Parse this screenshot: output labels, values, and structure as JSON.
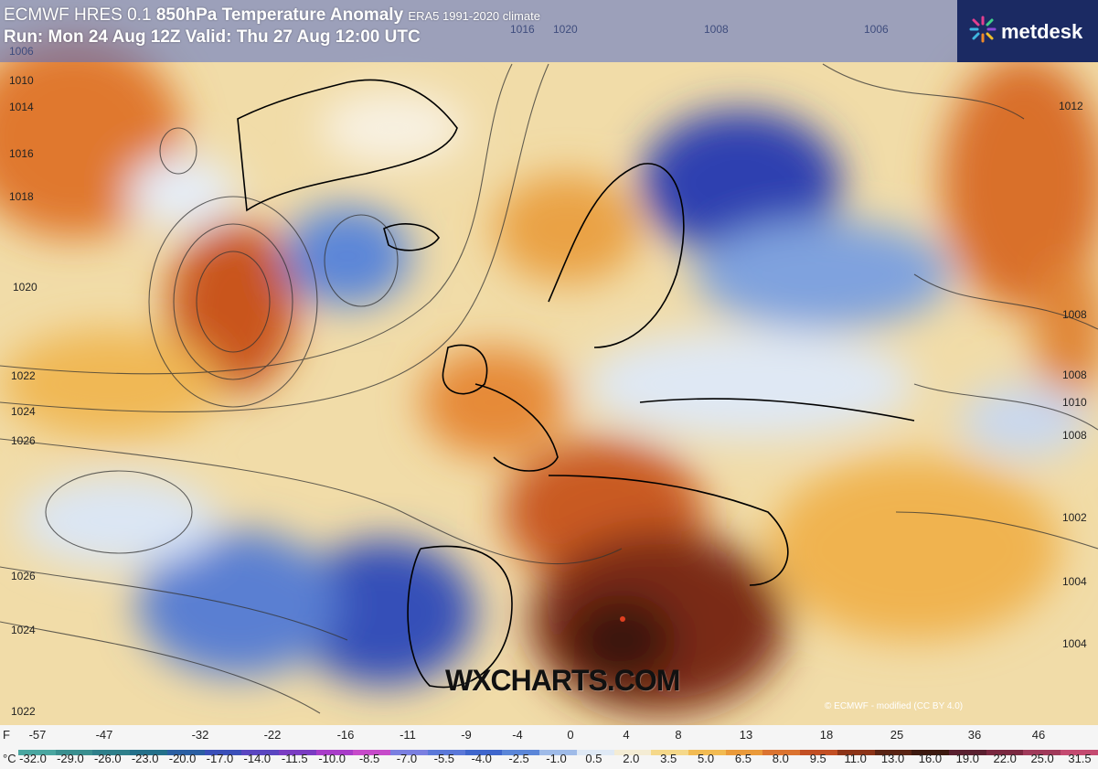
{
  "header": {
    "title_line1": "ECMWF HRES 0.1",
    "title_var": "850hPa Temperature Anomaly",
    "title_climate": "ERA5 1991-2020 climate",
    "title_line2": "Run: Mon 24 Aug 12Z Valid: Thu 27 Aug 12:00 UTC"
  },
  "brand": {
    "logo_text": "metdesk",
    "logo_icon": "sparkle-icon"
  },
  "watermark": "WXCHARTS.COM",
  "credit": "© ECMWF - modified (CC BY 4.0)",
  "isobars": {
    "left": [
      "1006",
      "1010",
      "1014",
      "1016",
      "1018",
      "1020",
      "1022",
      "1024",
      "1026",
      "1026",
      "1024",
      "1022"
    ],
    "top": [
      "1016",
      "1020",
      "1006",
      "1008",
      "1012"
    ],
    "right": [
      "1012",
      "1008",
      "1008",
      "1010",
      "1008",
      "1002",
      "1004",
      "1004"
    ]
  },
  "legend": {
    "f_unit": "F",
    "c_unit": "°C",
    "f_ticks": [
      "-57",
      "-47",
      "-32",
      "-22",
      "-16",
      "-11",
      "-9",
      "-4",
      "0",
      "4",
      "8",
      "13",
      "18",
      "25",
      "36",
      "46"
    ],
    "c_ticks": [
      "-32.0",
      "-29.0",
      "-26.0",
      "-23.0",
      "-20.0",
      "-17.0",
      "-14.0",
      "-11.5",
      "-10.0",
      "-8.5",
      "-7.0",
      "-5.5",
      "-4.0",
      "-2.5",
      "-1.0",
      "0.5",
      "2.0",
      "3.5",
      "5.0",
      "6.5",
      "8.0",
      "9.5",
      "11.0",
      "13.0",
      "16.0",
      "19.0",
      "22.0",
      "25.0",
      "31.5"
    ],
    "colors": [
      "#4aa6a0",
      "#3a8f8f",
      "#2f7f8a",
      "#24708a",
      "#2b5fa2",
      "#3a4fb8",
      "#5a46c0",
      "#7a3cc2",
      "#a83cc8",
      "#c64ac9",
      "#7a7fe0",
      "#5b78d8",
      "#3f66cc",
      "#5b86d8",
      "#9fbbe8",
      "#dfe9f5",
      "#f4ecd4",
      "#f5d88a",
      "#f2bb52",
      "#ea9a3a",
      "#db7330",
      "#c24f24",
      "#8c3418",
      "#5a2414",
      "#3d1a10",
      "#5a2030",
      "#7a2840",
      "#a03a5a",
      "#c44a70"
    ]
  }
}
